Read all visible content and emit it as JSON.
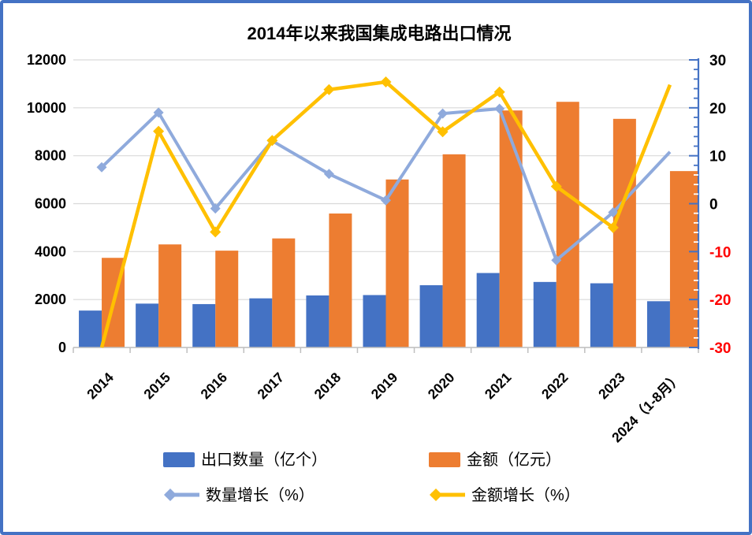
{
  "window": {
    "background": "#FFFFFF",
    "border_color": "#4472C4"
  },
  "chart_data": {
    "type": "bar+line-combo",
    "title": "2014年以来我国集成电路出口情况",
    "categories": [
      "2014",
      "2015",
      "2016",
      "2017",
      "2018",
      "2019",
      "2020",
      "2021",
      "2022",
      "2023",
      "2024（1-8月）"
    ],
    "series": [
      {
        "name": "出口数量（亿个）",
        "type": "bar",
        "axis": "left",
        "color": "#4472C4",
        "values": [
          1540,
          1830,
          1810,
          2050,
          2171,
          2187,
          2598,
          3107,
          2734,
          2678,
          1930
        ]
      },
      {
        "name": "金额（亿元）",
        "type": "bar",
        "axis": "left",
        "color": "#ED7D31",
        "values": [
          3740,
          4300,
          4040,
          4550,
          5590,
          7010,
          8060,
          9890,
          10250,
          9540,
          7360
        ]
      },
      {
        "name": "数量增长（%）",
        "type": "line",
        "axis": "right",
        "color": "#8FAADC",
        "marker": "diamond",
        "values": [
          7.6,
          19.0,
          -1.0,
          13.1,
          6.2,
          0.7,
          18.8,
          19.8,
          -11.8,
          -1.8,
          10.8
        ]
      },
      {
        "name": "金额增长（%）",
        "type": "line",
        "axis": "right",
        "color": "#FFC000",
        "marker": "diamond",
        "values": [
          -30.0,
          15.1,
          -5.9,
          13.2,
          23.8,
          25.4,
          15.0,
          23.3,
          3.6,
          -5.0,
          24.8
        ]
      }
    ],
    "left_axis": {
      "min": 0,
      "max": 12000,
      "step": 2000,
      "tick_labels": [
        "12000",
        "10000",
        "8000",
        "6000",
        "4000",
        "2000",
        "0"
      ]
    },
    "right_axis": {
      "min": -30,
      "max": 30,
      "step": 10,
      "tick_labels": [
        "30",
        "20",
        "10",
        "0",
        "-10",
        "-20",
        "-30"
      ],
      "minor_step": 2,
      "axis_color": "#4472C4",
      "positive_label_color": "#000000",
      "negative_label_color": "#FF0000"
    },
    "grid": true,
    "gridline_color": "#D9D9D9",
    "x_axis_color": "#BFBFBF",
    "legend_position": "bottom"
  }
}
